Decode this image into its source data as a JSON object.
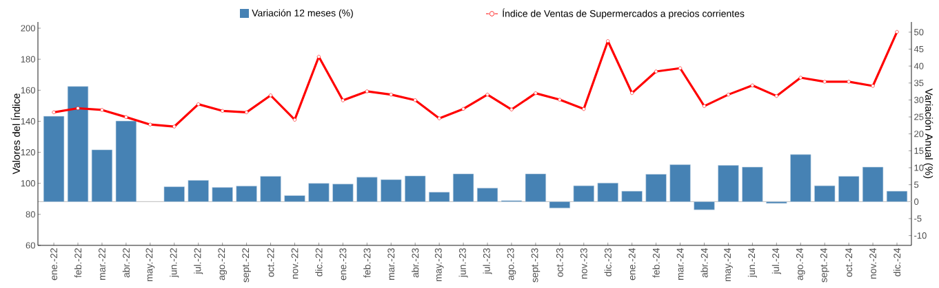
{
  "chart_data": {
    "type": "bar",
    "xlabel": null,
    "ylabel": "Valores del Índice",
    "y2label": "Variación Anual (%)",
    "categories": [
      "ene.-22",
      "feb.-22",
      "mar.-22",
      "abr.-22",
      "may.-22",
      "jun.-22",
      "jul.-22",
      "ago.-22",
      "sept.-22",
      "oct.-22",
      "nov.-22",
      "dic.-22",
      "ene.-23",
      "feb.-23",
      "mar.-23",
      "abr.-23",
      "may.-23",
      "jun.-23",
      "jul.-23",
      "ago.-23",
      "sept.-23",
      "oct.-23",
      "nov.-23",
      "dic.-23",
      "ene.-24",
      "feb.-24",
      "mar.-24",
      "abr.-24",
      "may.-24",
      "jun.-24",
      "jul.-24",
      "ago.-24",
      "sept.-24",
      "oct.-24",
      "nov.-24",
      "dic.-24"
    ],
    "series": [
      {
        "name": "Variación 12 meses (%)",
        "type": "bar",
        "axis": "y2",
        "color": "#4682b4",
        "values": [
          25.2,
          34.0,
          15.3,
          23.8,
          null,
          4.4,
          6.3,
          4.2,
          4.6,
          7.5,
          1.8,
          5.4,
          5.2,
          7.2,
          6.5,
          7.6,
          2.8,
          8.2,
          4.0,
          0.3,
          8.2,
          -1.9,
          4.7,
          5.5,
          3.1,
          8.1,
          10.9,
          -2.4,
          10.7,
          10.2,
          -0.5,
          13.9,
          4.7,
          7.5,
          10.2,
          3.1
        ]
      },
      {
        "name": "Índice de Ventas de Supermercados a precios corrientes",
        "type": "line",
        "axis": "y",
        "color": "#ff0000",
        "marker": "circle",
        "line_style": "solid",
        "values": [
          145.8,
          148.4,
          147.3,
          142.7,
          137.9,
          136.6,
          151.0,
          146.7,
          145.8,
          156.7,
          141.0,
          181.6,
          153.5,
          159.3,
          157.2,
          153.6,
          141.9,
          148.0,
          157.2,
          147.6,
          158.1,
          153.9,
          147.9,
          191.7,
          158.2,
          172.1,
          174.2,
          149.8,
          157.2,
          163.1,
          156.3,
          168.1,
          165.5,
          165.5,
          162.8,
          197.6
        ]
      }
    ],
    "ylim": [
      60,
      204
    ],
    "yticks": [
      60,
      80,
      100,
      120,
      140,
      160,
      180,
      200
    ],
    "y2lim": [
      -12.9,
      53
    ],
    "y2ticks": [
      -10,
      -5,
      0,
      5,
      10,
      15,
      20,
      25,
      30,
      35,
      40,
      45,
      50
    ],
    "ref_lines": [
      {
        "axis": "y2",
        "value": 0,
        "color": "#c8c8c8"
      }
    ],
    "grid": false,
    "legend": "top"
  }
}
